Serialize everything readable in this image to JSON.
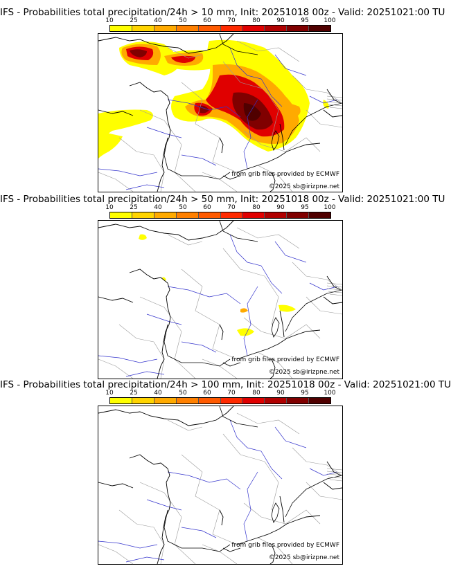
{
  "colorbar": {
    "ticks": [
      "10",
      "25",
      "40",
      "50",
      "60",
      "70",
      "80",
      "90",
      "95",
      "100"
    ],
    "colors": [
      "#ffff00",
      "#ffd400",
      "#ffaa00",
      "#ff8000",
      "#ff5a00",
      "#ff2a00",
      "#e00000",
      "#b00000",
      "#800000",
      "#500000"
    ]
  },
  "panels": [
    {
      "title": "IFS - Probabilities total precipitation/24h > 10 mm, Init: 20251018 00z - Valid: 20251021:00 TU",
      "credit_ecmwf": "from grib files provided by ECMWF",
      "credit_copyright": "©2025 sb@irizpne.net"
    },
    {
      "title": "IFS - Probabilities total precipitation/24h > 50 mm, Init: 20251018 00z - Valid: 20251021:00 TU",
      "credit_ecmwf": "from grib files provided by ECMWF",
      "credit_copyright": "©2025 sb@irizpne.net"
    },
    {
      "title": "IFS - Probabilities total precipitation/24h > 100 mm, Init: 20251018 00z - Valid: 20251021:00 TU",
      "credit_ecmwf": "from grib files provided by ECMWF",
      "credit_copyright": "©2025 sb@irizpne.net"
    }
  ]
}
